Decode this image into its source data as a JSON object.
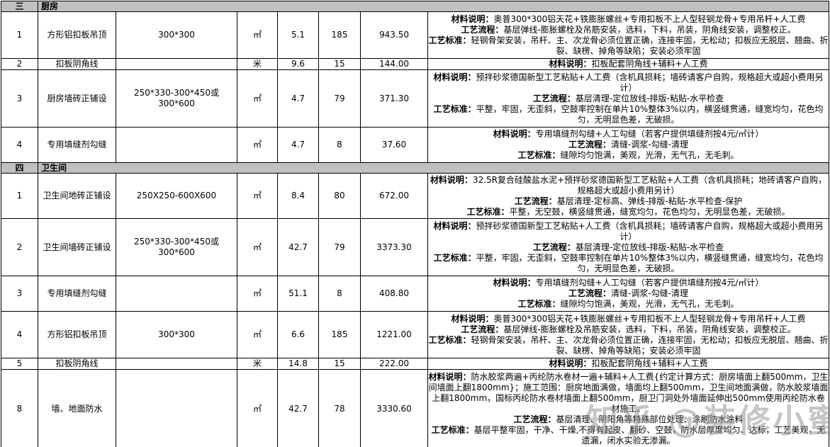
{
  "watermark": {
    "text": "知乎 @装修小蜜"
  },
  "table": {
    "sections": [
      {
        "index_label": "三",
        "title": "厨房",
        "rows": [
          {
            "no": "1",
            "name": "方形铝扣板吊顶",
            "spec": "300*300",
            "unit": "㎡",
            "qty": "5.1",
            "price": "185",
            "amount": "943.50",
            "desc": [
              {
                "label": "材料说明：",
                "text": "奥普300*300铝天花+铁膨胀螺丝+专用扣板不上人型轻钢龙骨+专用吊杆+人工费"
              },
              {
                "label": "工艺流程：",
                "text": "基层弹线-膨胀螺栓及吊筋安装，选料，下料，吊装，阴角线安装，调整校正。"
              },
              {
                "label": "工艺标准：",
                "text": "轻钢骨架安装，吊杆、主、次龙骨必须位置正确，连接牢固，无松动；扣板应无脱层、翘曲、折裂、缺楞、掉角等缺陷；安装必须牢固"
              }
            ]
          },
          {
            "no": "2",
            "name": "扣板阴角线",
            "spec": "",
            "unit": "米",
            "qty": "9.6",
            "price": "15",
            "amount": "144.00",
            "desc": [
              {
                "label": "材料说明：",
                "text": "扣板配套阴角线+辅料+人工费"
              }
            ]
          },
          {
            "no": "3",
            "name": "厨房墙砖正铺设",
            "spec": "250*330-300*450或300*600",
            "unit": "㎡",
            "qty": "4.7",
            "price": "79",
            "amount": "371.30",
            "desc": [
              {
                "label": "材料说明：",
                "text": "预拌砂浆德国新型工艺粘贴+人工费（含机具损耗；墙砖请客户自购，规格超大或超小费用另计）"
              },
              {
                "label": "工艺流程：",
                "text": "基层清理-定位放线-排版-粘贴-水平检查"
              },
              {
                "label": "工艺标准：",
                "text": "平整，牢固，无歪斜，空鼓率控制在单片10%整体3%以内，横竖缝贯通，缝宽均匀，花色均匀，无明显色差，无破损。"
              }
            ]
          },
          {
            "no": "4",
            "name": "专用填缝剂勾缝",
            "spec": "",
            "unit": "㎡",
            "qty": "4.7",
            "price": "8",
            "amount": "37.60",
            "desc": [
              {
                "label": "材料说明：",
                "text": "专用填缝剂勾缝+人工勾缝（若客户提供填缝剂按4元/㎡计）"
              },
              {
                "label": "工艺流程：",
                "text": "清缝-调浆-勾缝-清理"
              },
              {
                "label": "工艺标准：",
                "text": "缝隙均匀饱满，美观，光滑，无气孔，无毛刺。"
              }
            ]
          }
        ]
      },
      {
        "index_label": "四",
        "title": "卫生间",
        "rows": [
          {
            "no": "1",
            "name": "卫生间地砖正铺设",
            "spec": "250X250-600X600",
            "unit": "㎡",
            "qty": "8.4",
            "price": "80",
            "amount": "672.00",
            "desc": [
              {
                "label": "材料说明：",
                "text": "32.5R复合硅酸盐水泥+预拌砂浆德国新型工艺粘贴+人工费（含机具损耗；地砖请客户自购，规格超大或超小费用另计）"
              },
              {
                "label": "工艺流程：",
                "text": "基层清理-定标高、弹线-排版-粘贴-水平检查-保护"
              },
              {
                "label": "工艺标准：",
                "text": "平整，无空鼓，横竖缝贯通，缝宽均匀，花色均匀，无明显色差，无破损。"
              }
            ]
          },
          {
            "no": "2",
            "name": "卫生间墙砖正铺设",
            "spec": "250*330-300*450或300*600",
            "unit": "㎡",
            "qty": "42.7",
            "price": "79",
            "amount": "3373.30",
            "desc": [
              {
                "label": "材料说明：",
                "text": "预拌砂浆德国新型工艺粘贴+人工费（含机具损耗；墙砖请客户自购，规格超大或超小费用另计）"
              },
              {
                "label": "工艺流程：",
                "text": "基层清理-定位放线-排版-粘贴-水平检查"
              },
              {
                "label": "工艺标准：",
                "text": "平整，牢固，无歪斜，空鼓率控制在单片10%整体3%以内，横竖缝贯通，缝宽均匀，花色均匀，无明显色差，无破损。"
              }
            ]
          },
          {
            "no": "3",
            "name": "专用填缝剂勾缝",
            "spec": "",
            "unit": "㎡",
            "qty": "51.1",
            "price": "8",
            "amount": "408.80",
            "desc": [
              {
                "label": "材料说明：",
                "text": "专用填缝剂勾缝+人工勾缝（若客户提供填缝剂按4元/㎡计）"
              },
              {
                "label": "工艺流程：",
                "text": "清缝-调浆-勾缝-清理"
              },
              {
                "label": "工艺标准：",
                "text": "缝隙均匀饱满，美观，光滑，无气孔，无毛刺。"
              }
            ]
          },
          {
            "no": "4",
            "name": "方形铝扣板吊顶",
            "spec": "300*300",
            "unit": "㎡",
            "qty": "6.6",
            "price": "185",
            "amount": "1221.00",
            "desc": [
              {
                "label": "材料说明：",
                "text": "奥普300*300铝天花+铁膨胀螺丝+专用扣板不上人型轻钢龙骨+专用吊杆+人工费"
              },
              {
                "label": "工艺流程：",
                "text": "基层弹线-膨胀螺栓及吊筋安装，选料，下料，吊装，阴角线安装，调整校正。"
              },
              {
                "label": "工艺标准：",
                "text": "轻钢骨架安装，吊杆、主、次龙骨必须位置正确，连接牢固，无松动；扣板应无脱层、翘曲、折裂、缺楞、掉角等缺陷；安装必须牢固"
              }
            ]
          },
          {
            "no": "5",
            "name": "扣板阴角线",
            "spec": "",
            "unit": "米",
            "qty": "14.8",
            "price": "15",
            "amount": "222.00",
            "desc": [
              {
                "label": "材料说明：",
                "text": "扣板配套阴角线+辅料+人工费"
              }
            ]
          },
          {
            "no": "8",
            "name": "墙、地面防水",
            "spec": "",
            "unit": "㎡",
            "qty": "42.7",
            "price": "78",
            "amount": "3330.60",
            "desc": [
              {
                "label": "材料说明：",
                "text": "防水胶浆两遍+丙纶防水卷材一遍+辅料+人工费{约定计算方式：厨房墙面上翻500mm，卫生间墙面上翻1800mm}；施工范围：厨房地面满做，墙面均上翻500mm，卫生间地面满做，防水胶浆墙面上翻1800mm，国标丙纶防水卷材墙面上翻500mm，厨卫门洞处外墙面延伸出500mm使用丙纶防水卷材施工。"
              },
              {
                "label": "工艺流程：",
                "text": "基层清理、阴阳角等特殊部位处理、涂刷防水涂料"
              },
              {
                "label": "工艺标准：",
                "text": "基层平整牢固，干净、干燥,不得有起皮、翻砂、空鼓，防水层厚度均匀、达标，工艺美观，无遗漏，闭水实验无渗漏。"
              }
            ]
          }
        ]
      }
    ]
  }
}
